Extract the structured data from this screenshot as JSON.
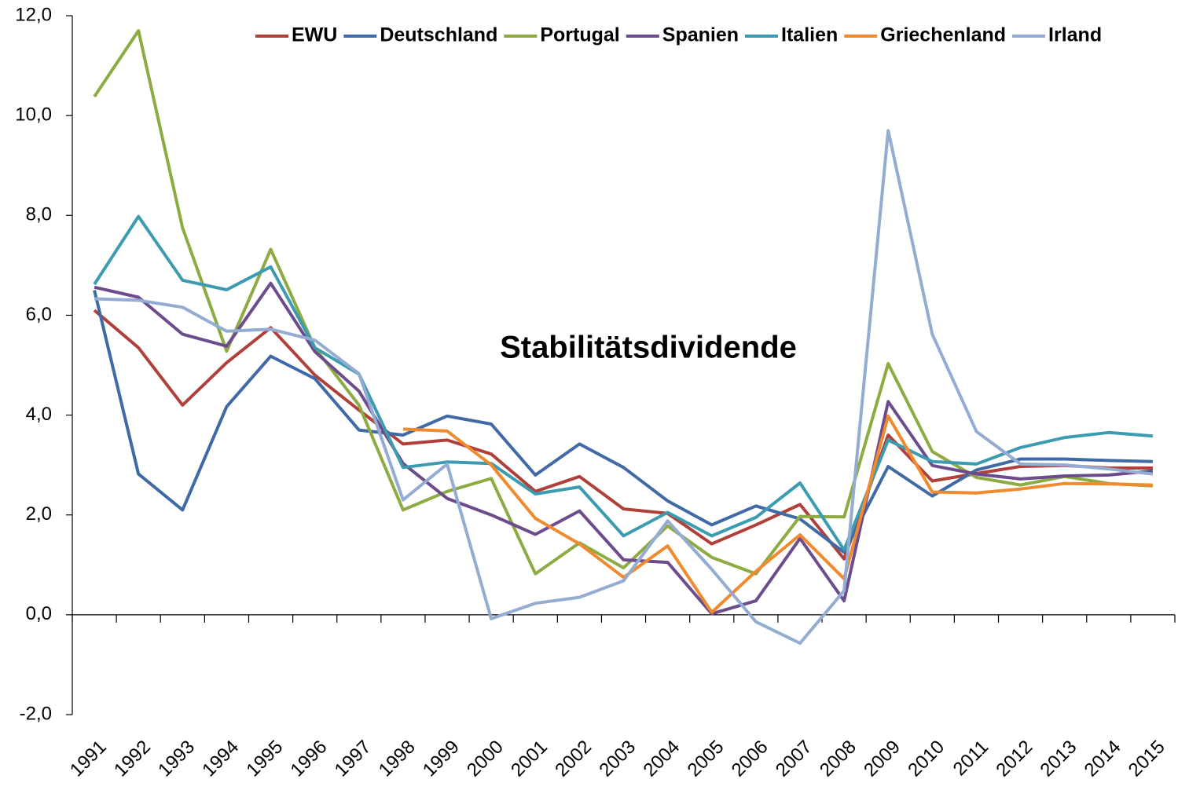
{
  "chart_data": {
    "type": "line",
    "annotation": "Stabilitätsdividende",
    "categories": [
      "1991",
      "1992",
      "1993",
      "1994",
      "1995",
      "1996",
      "1997",
      "1998",
      "1999",
      "2000",
      "2001",
      "2002",
      "2003",
      "2004",
      "2005",
      "2006",
      "2007",
      "2008",
      "2009",
      "2010",
      "2011",
      "2012",
      "2013",
      "2014",
      "2015"
    ],
    "ylim": [
      -2,
      12
    ],
    "yticks": [
      {
        "value": -2,
        "label": "-2,0"
      },
      {
        "value": 0,
        "label": "0,0"
      },
      {
        "value": 2,
        "label": "2,0"
      },
      {
        "value": 4,
        "label": "4,0"
      },
      {
        "value": 6,
        "label": "6,0"
      },
      {
        "value": 8,
        "label": "8,0"
      },
      {
        "value": 10,
        "label": "10,0"
      },
      {
        "value": 12,
        "label": "12,0"
      }
    ],
    "grid": false,
    "legend": "top-right",
    "series": [
      {
        "name": "EWU",
        "color": "#b0403a",
        "values": [
          6.1,
          5.35,
          4.2,
          5.05,
          5.75,
          4.8,
          4.1,
          3.42,
          3.5,
          3.22,
          2.47,
          2.77,
          2.12,
          2.03,
          1.42,
          1.8,
          2.21,
          1.12,
          3.6,
          2.68,
          2.83,
          2.97,
          2.99,
          2.94,
          2.94
        ]
      },
      {
        "name": "Deutschland",
        "color": "#3f6aa6",
        "values": [
          6.5,
          2.82,
          2.1,
          4.17,
          5.18,
          4.73,
          3.7,
          3.6,
          3.98,
          3.82,
          2.8,
          3.42,
          2.95,
          2.28,
          1.8,
          2.18,
          1.92,
          1.25,
          2.97,
          2.38,
          2.9,
          3.12,
          3.12,
          3.09,
          3.07
        ]
      },
      {
        "name": "Portugal",
        "color": "#8cab43",
        "values": [
          10.38,
          11.7,
          7.75,
          5.28,
          7.32,
          5.35,
          4.2,
          2.1,
          2.47,
          2.73,
          0.82,
          1.44,
          0.94,
          1.78,
          1.15,
          0.82,
          1.97,
          1.96,
          5.03,
          3.27,
          2.75,
          2.6,
          2.77,
          2.63,
          2.58
        ]
      },
      {
        "name": "Spanien",
        "color": "#6d4c8d",
        "values": [
          6.56,
          6.36,
          5.62,
          5.38,
          6.64,
          5.27,
          4.48,
          3.03,
          2.33,
          2.0,
          1.61,
          2.08,
          1.1,
          1.05,
          0.02,
          0.28,
          1.53,
          0.28,
          4.27,
          2.99,
          2.82,
          2.72,
          2.78,
          2.8,
          2.88
        ]
      },
      {
        "name": "Italien",
        "color": "#3c9bb0",
        "values": [
          6.62,
          7.98,
          6.7,
          6.51,
          6.97,
          5.35,
          4.82,
          2.95,
          3.06,
          3.03,
          2.42,
          2.56,
          1.58,
          2.05,
          1.58,
          1.95,
          2.64,
          1.3,
          3.5,
          3.07,
          3.02,
          3.35,
          3.55,
          3.65,
          3.58
        ]
      },
      {
        "name": "Griechenland",
        "color": "#ef8a2f",
        "values": [
          null,
          null,
          null,
          null,
          null,
          null,
          null,
          3.72,
          3.68,
          3.0,
          1.93,
          1.42,
          0.75,
          1.38,
          0.05,
          0.87,
          1.6,
          0.72,
          3.98,
          2.46,
          2.44,
          2.52,
          2.63,
          2.62,
          2.6
        ]
      },
      {
        "name": "Irland",
        "color": "#94acd2",
        "values": [
          6.33,
          6.3,
          6.16,
          5.68,
          5.72,
          5.5,
          4.83,
          2.3,
          3.02,
          -0.08,
          0.23,
          0.35,
          0.68,
          1.88,
          0.91,
          -0.14,
          -0.57,
          0.48,
          9.7,
          5.62,
          3.67,
          3.02,
          3.0,
          2.92,
          2.82
        ]
      }
    ]
  }
}
